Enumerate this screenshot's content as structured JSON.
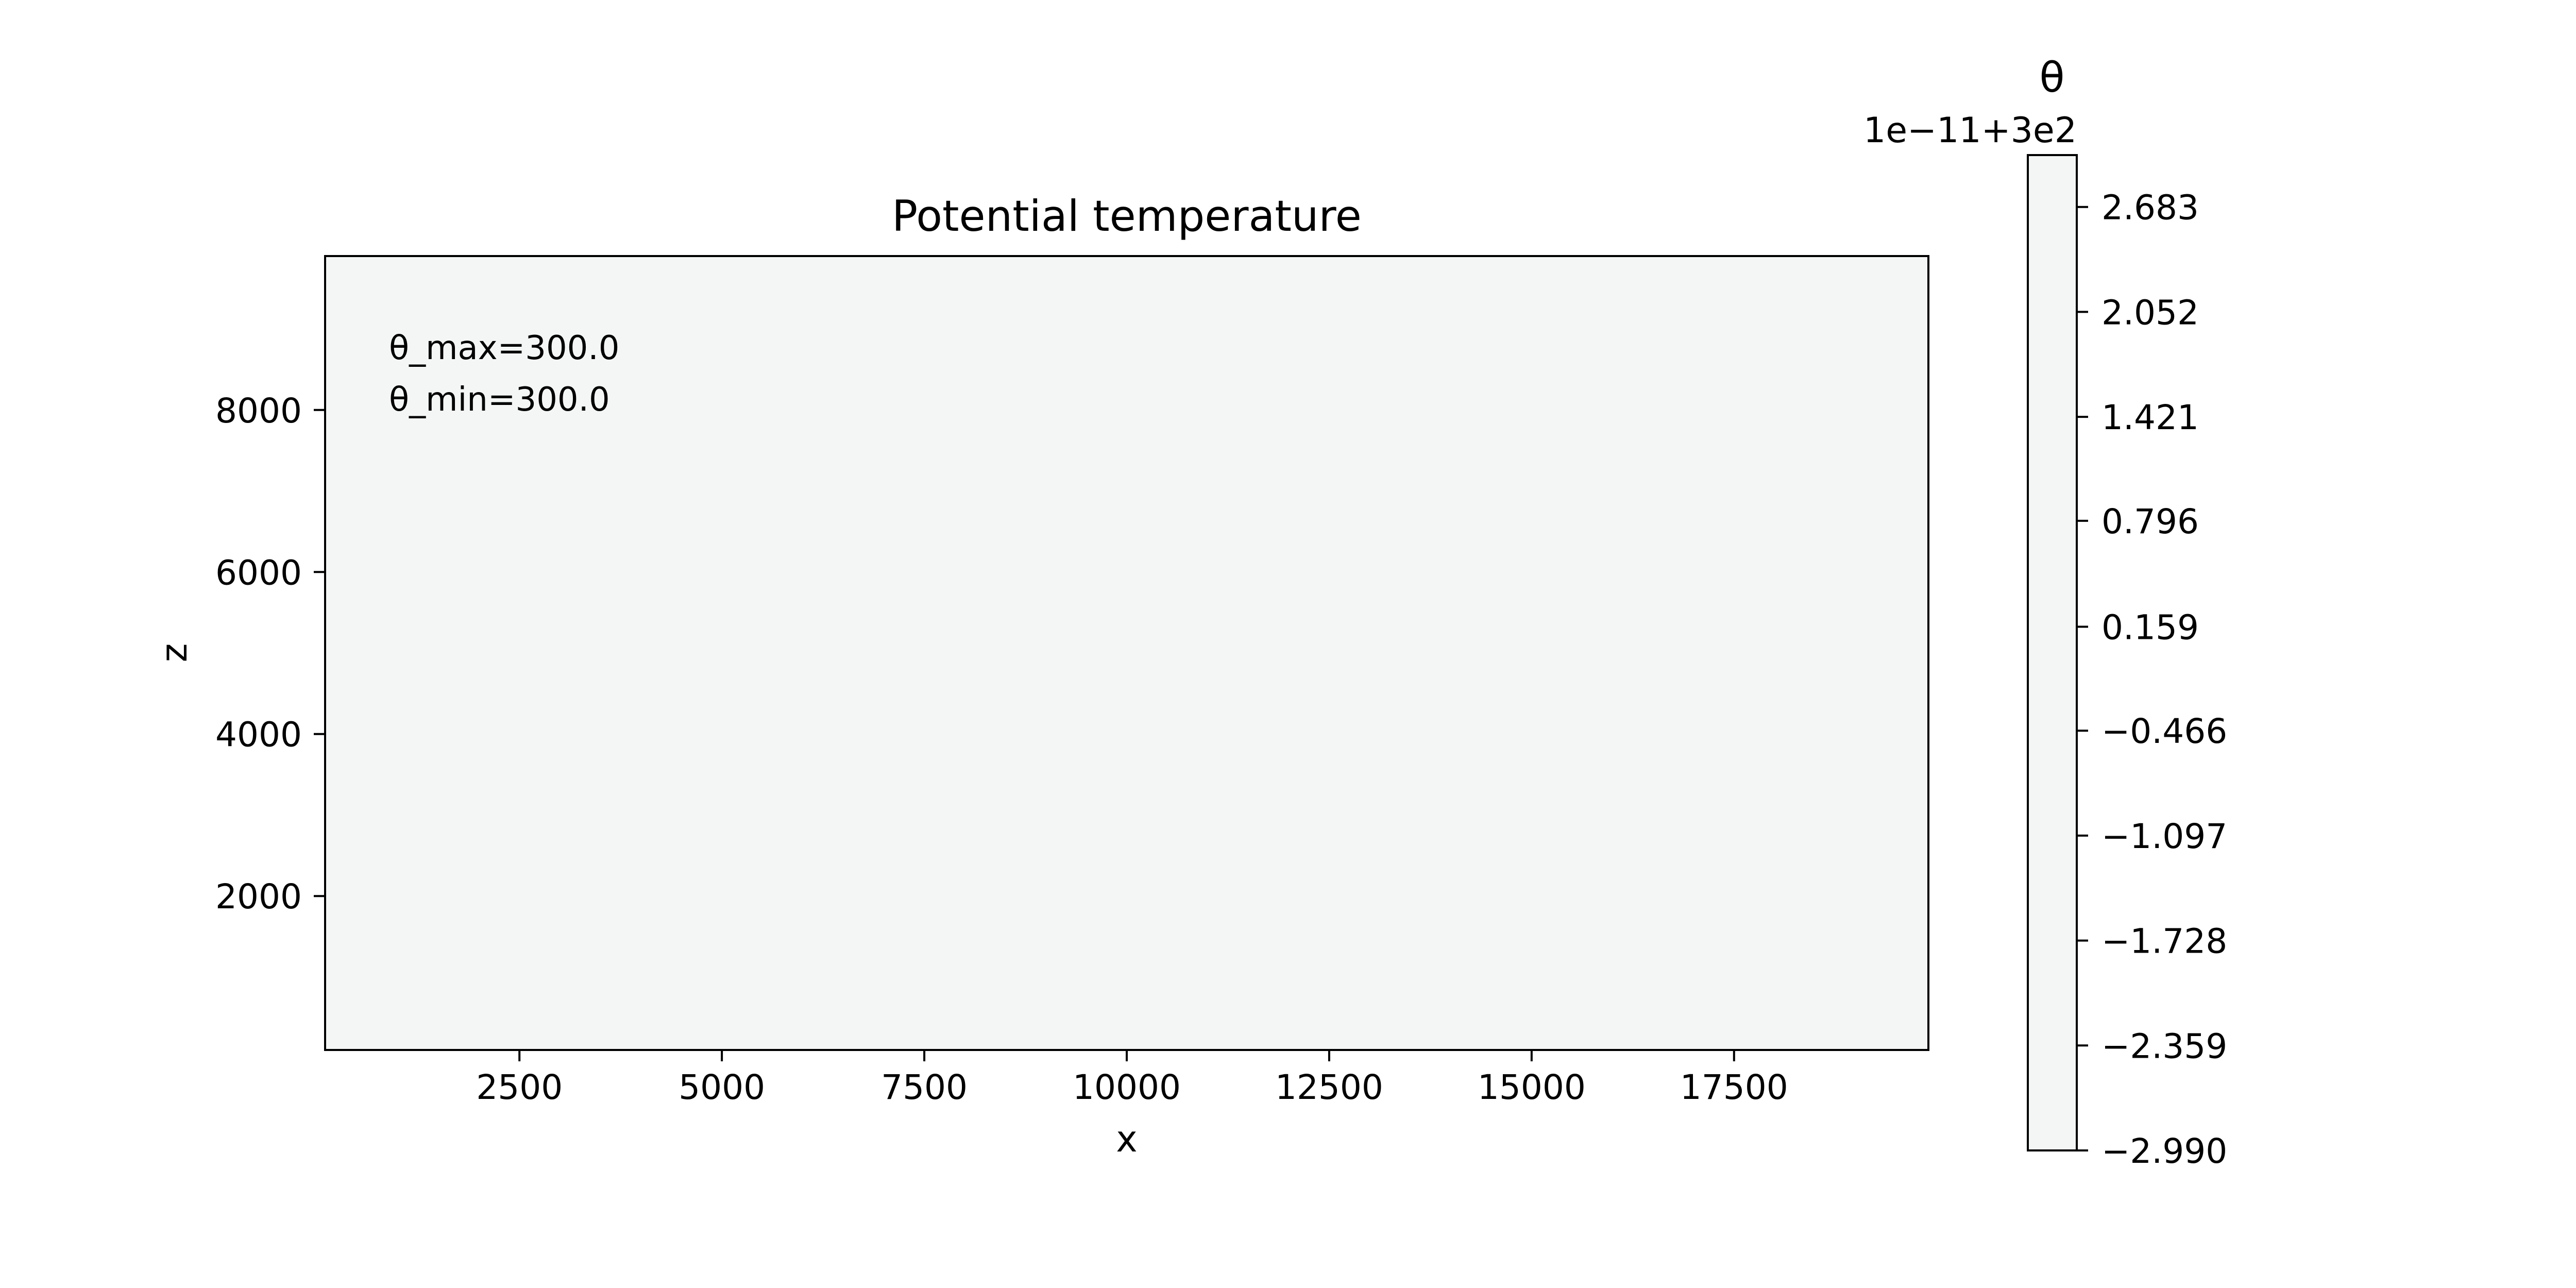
{
  "chart_data": {
    "type": "heatmap",
    "title": "Potential temperature",
    "xlabel": "x",
    "ylabel": "z",
    "xlim": [
      100,
      19900
    ],
    "ylim": [
      100,
      9900
    ],
    "x_ticks": [
      {
        "value": 2500,
        "label": "2500"
      },
      {
        "value": 5000,
        "label": "5000"
      },
      {
        "value": 7500,
        "label": "7500"
      },
      {
        "value": 10000,
        "label": "10000"
      },
      {
        "value": 12500,
        "label": "12500"
      },
      {
        "value": 15000,
        "label": "15000"
      },
      {
        "value": 17500,
        "label": "17500"
      }
    ],
    "y_ticks": [
      {
        "value": 2000,
        "label": "2000"
      },
      {
        "value": 4000,
        "label": "4000"
      },
      {
        "value": 6000,
        "label": "6000"
      },
      {
        "value": 8000,
        "label": "8000"
      }
    ],
    "field_value": 300.0,
    "field_color": "#f4f6f6",
    "annotations": [
      "θ_max=300.0",
      "θ_min=300.0"
    ],
    "grid": false,
    "colorbar": {
      "label": "θ",
      "offset_text": "1e−11+3e2",
      "range": [
        -2.99,
        2.995
      ],
      "ticks": [
        {
          "value": 2.683,
          "label": "2.683"
        },
        {
          "value": 2.052,
          "label": "2.052"
        },
        {
          "value": 1.421,
          "label": "1.421"
        },
        {
          "value": 0.796,
          "label": "0.796"
        },
        {
          "value": 0.159,
          "label": "0.159"
        },
        {
          "value": -0.466,
          "label": "−0.466"
        },
        {
          "value": -1.097,
          "label": "−1.097"
        },
        {
          "value": -1.728,
          "label": "−1.728"
        },
        {
          "value": -2.359,
          "label": "−2.359"
        },
        {
          "value": -2.99,
          "label": "−2.990"
        }
      ]
    }
  }
}
